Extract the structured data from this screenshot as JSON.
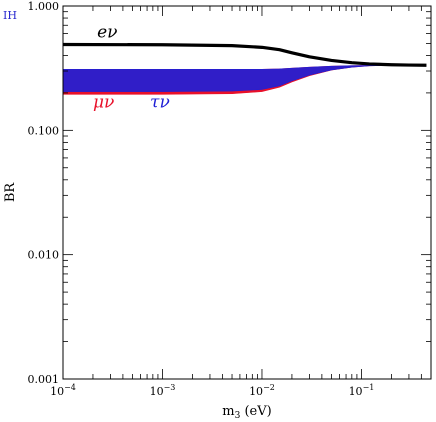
{
  "chart_data": {
    "type": "line",
    "corner_tag": "IH",
    "corner_tag_color": "#2a2acf",
    "xlabel": {
      "base": "m",
      "sub": "3",
      "unit": " (eV)"
    },
    "ylabel": "BR",
    "x_scale": "log",
    "y_scale": "log",
    "xlim": [
      0.0001,
      0.5
    ],
    "ylim": [
      0.001,
      1.0
    ],
    "x_ticks": [
      {
        "value": 0.0001,
        "base": "10",
        "exp": "−4"
      },
      {
        "value": 0.001,
        "base": "10",
        "exp": "−3"
      },
      {
        "value": 0.01,
        "base": "10",
        "exp": "−2"
      },
      {
        "value": 0.1,
        "base": "10",
        "exp": "−1"
      }
    ],
    "y_ticks": [
      {
        "value": 0.001,
        "label": "0.001"
      },
      {
        "value": 0.01,
        "label": "0.010"
      },
      {
        "value": 0.1,
        "label": "0.100"
      },
      {
        "value": 1.0,
        "label": "1.000"
      }
    ],
    "grid": false,
    "series": [
      {
        "name": "eν",
        "color": "#000000",
        "kind": "line",
        "x": [
          0.0001,
          0.001,
          0.005,
          0.01,
          0.015,
          0.02,
          0.03,
          0.05,
          0.08,
          0.12,
          0.2,
          0.3,
          0.45
        ],
        "y": [
          0.49,
          0.488,
          0.48,
          0.465,
          0.445,
          0.42,
          0.39,
          0.365,
          0.35,
          0.342,
          0.337,
          0.335,
          0.334
        ]
      },
      {
        "name": "μν",
        "color": "#e8102a",
        "kind": "band",
        "x": [
          0.0001,
          0.001,
          0.005,
          0.01,
          0.015,
          0.02,
          0.03,
          0.05,
          0.08,
          0.12,
          0.2,
          0.3,
          0.45
        ],
        "y_low": [
          0.195,
          0.195,
          0.197,
          0.205,
          0.222,
          0.245,
          0.275,
          0.305,
          0.322,
          0.33,
          0.333,
          0.334,
          0.334
        ],
        "y_high": [
          0.31,
          0.31,
          0.31,
          0.31,
          0.312,
          0.316,
          0.322,
          0.328,
          0.331,
          0.333,
          0.334,
          0.334,
          0.334
        ]
      },
      {
        "name": "τν",
        "color": "#1f1fd6",
        "kind": "band",
        "x": [
          0.0001,
          0.001,
          0.005,
          0.01,
          0.015,
          0.02,
          0.03,
          0.05,
          0.08,
          0.12,
          0.2,
          0.3,
          0.45
        ],
        "y_low": [
          0.205,
          0.205,
          0.207,
          0.213,
          0.228,
          0.25,
          0.278,
          0.306,
          0.322,
          0.33,
          0.333,
          0.334,
          0.334
        ],
        "y_high": [
          0.31,
          0.31,
          0.31,
          0.31,
          0.312,
          0.316,
          0.322,
          0.328,
          0.331,
          0.333,
          0.334,
          0.334,
          0.334
        ]
      }
    ],
    "label_anchors": [
      {
        "series": "eν",
        "x": 0.00022,
        "y": 0.56
      },
      {
        "series": "μν",
        "x": 0.0002,
        "y": 0.152
      },
      {
        "series": "τν",
        "x": 0.00075,
        "y": 0.152
      }
    ]
  }
}
